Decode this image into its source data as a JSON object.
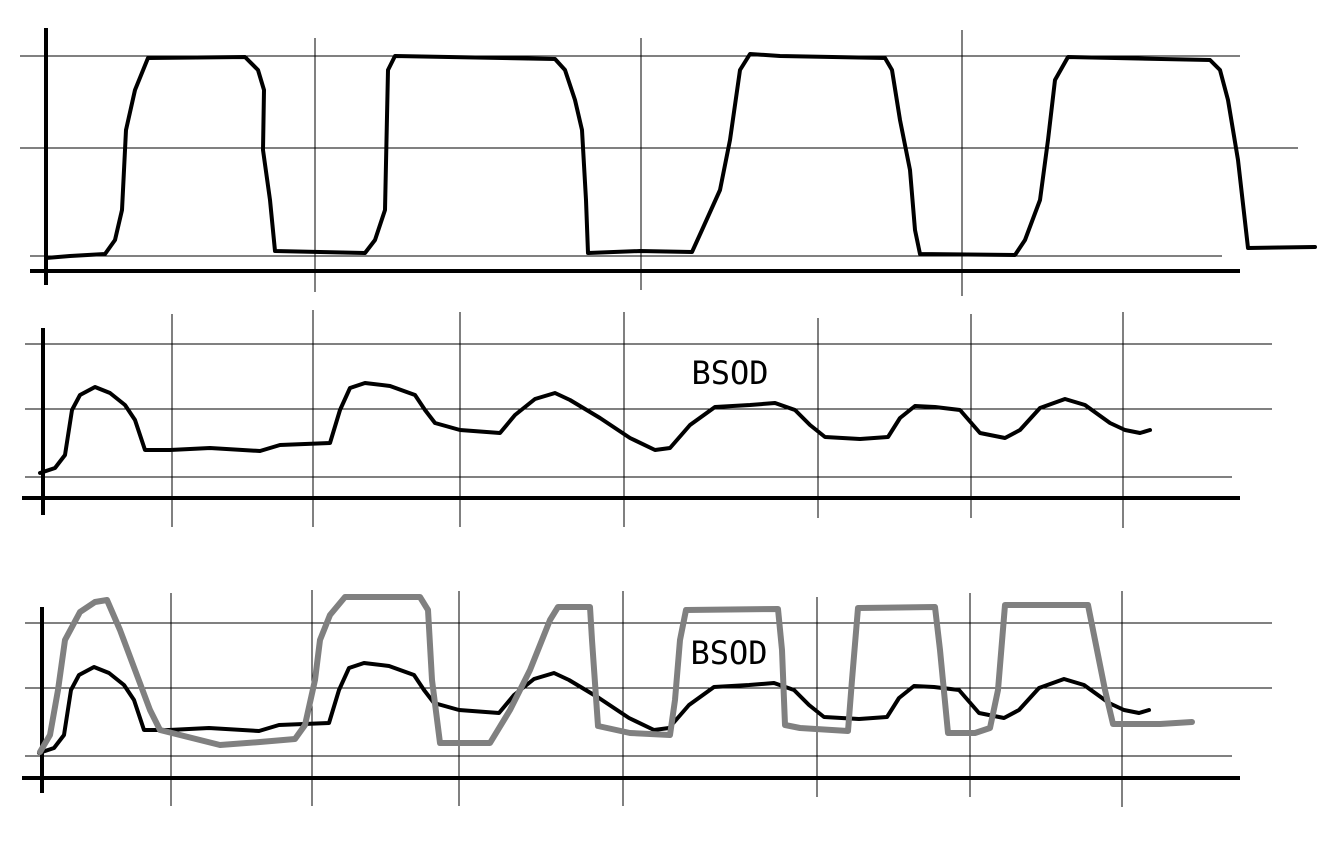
{
  "panels": {
    "middle": {
      "label": "BSOD"
    },
    "bottom": {
      "label": "BSOD"
    }
  }
}
